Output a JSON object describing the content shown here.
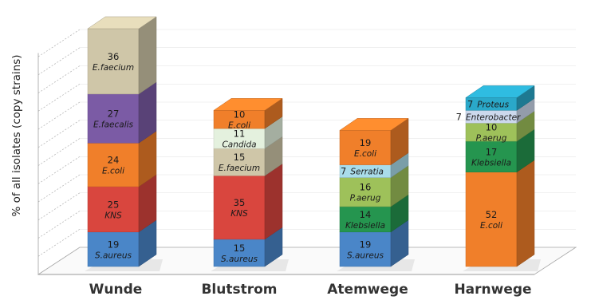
{
  "chart_data": {
    "type": "bar",
    "stacked": true,
    "three_d": true,
    "title": "",
    "xlabel": "",
    "ylabel": "% of all isolates (copy strains)",
    "ylim": [
      0,
      100
    ],
    "grid": true,
    "categories": [
      "Wunde",
      "Blutstrom",
      "Atemwege",
      "Harnwege"
    ],
    "stacks": [
      {
        "category": "Wunde",
        "segments": [
          {
            "value": 19,
            "label": "S.aureus",
            "color": "#4a86c8"
          },
          {
            "value": 25,
            "label": "KNS",
            "color": "#d9463e"
          },
          {
            "value": 24,
            "label": "E.coli",
            "color": "#f07f2a"
          },
          {
            "value": 27,
            "label": "E.faecalis",
            "color": "#7b5ba5"
          },
          {
            "value": 36,
            "label": "E.faecium",
            "color": "#cfc6a8"
          }
        ]
      },
      {
        "category": "Blutstrom",
        "segments": [
          {
            "value": 15,
            "label": "S.aureus",
            "color": "#4a86c8"
          },
          {
            "value": 35,
            "label": "KNS",
            "color": "#d9463e"
          },
          {
            "value": 15,
            "label": "E.faecium",
            "color": "#cfc6a8"
          },
          {
            "value": 11,
            "label": "Candida",
            "color": "#e4f1de"
          },
          {
            "value": 10,
            "label": "E.coli",
            "color": "#f07f2a"
          }
        ]
      },
      {
        "category": "Atemwege",
        "segments": [
          {
            "value": 19,
            "label": "S.aureus",
            "color": "#4a86c8"
          },
          {
            "value": 14,
            "label": "Klebsiella",
            "color": "#25954f"
          },
          {
            "value": 16,
            "label": "P.aerug",
            "color": "#9ec15a"
          },
          {
            "value": 7,
            "label": "Serratia",
            "color": "#a9dcea"
          },
          {
            "value": 19,
            "label": "E.coli",
            "color": "#f07f2a"
          }
        ]
      },
      {
        "category": "Harnwege",
        "segments": [
          {
            "value": 52,
            "label": "E.coli",
            "color": "#f07f2a"
          },
          {
            "value": 17,
            "label": "Klebsiella",
            "color": "#25954f"
          },
          {
            "value": 10,
            "label": "P.aerug",
            "color": "#9ec15a"
          },
          {
            "value": 7,
            "label": "Enterobacter",
            "color": "#ccd8ec"
          },
          {
            "value": 7,
            "label": "Proteus",
            "color": "#2aa8c9"
          }
        ]
      }
    ]
  }
}
